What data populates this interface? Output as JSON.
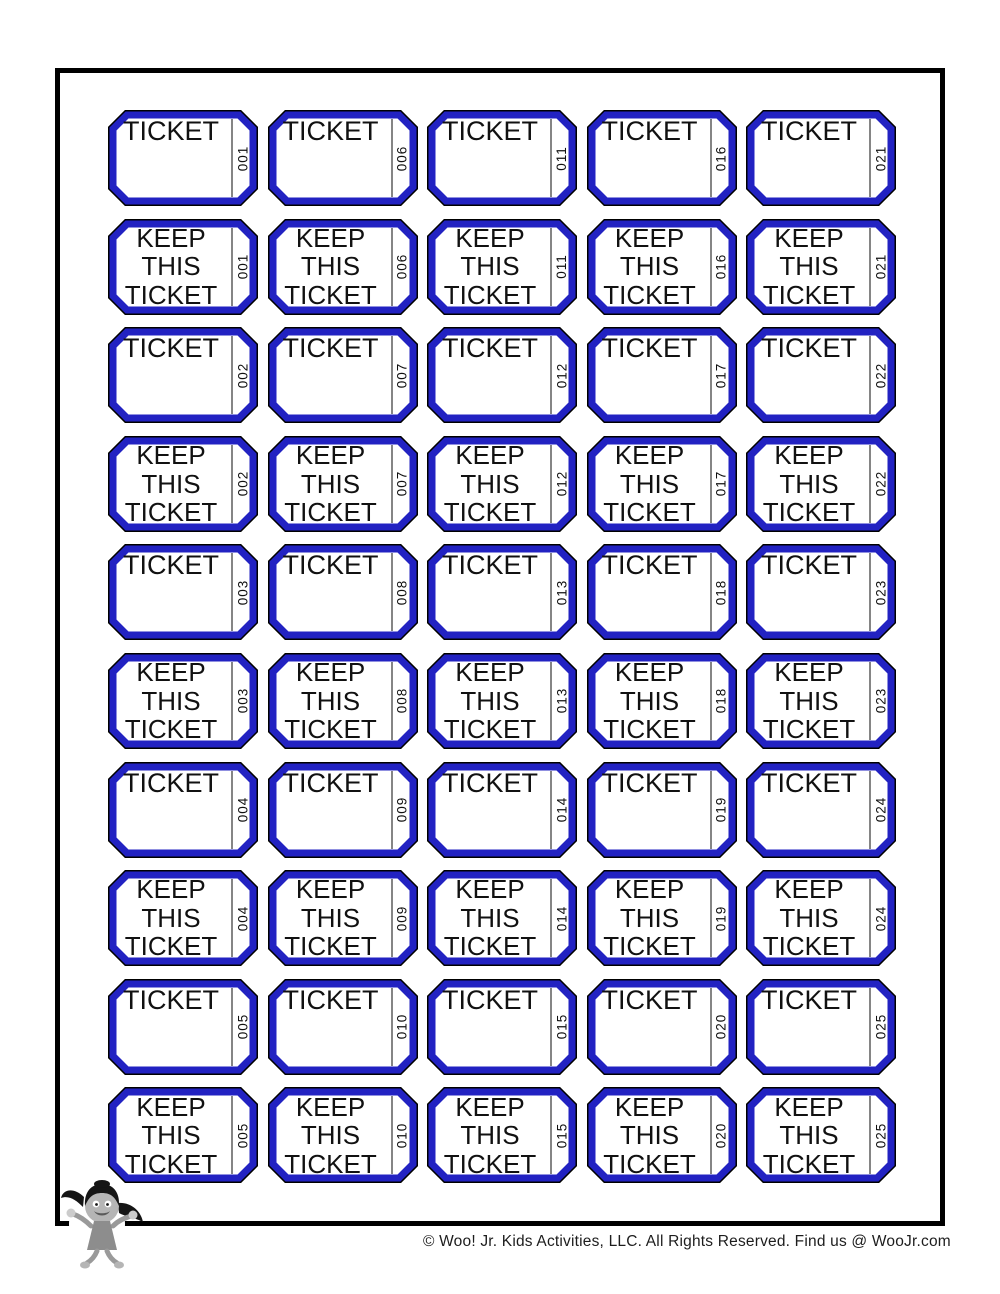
{
  "footer": {
    "text": "© Woo! Jr. Kids Activities, LLC. All Rights Reserved. Find us @ WooJr.com"
  },
  "colors": {
    "ticket_border_blue": "#2222C2",
    "keyline_black": "#000000",
    "perforation_gray": "#333333",
    "text_black": "#111111"
  },
  "mascot": {
    "name": "woo-jr-girl-mascot"
  },
  "tickets": [
    {
      "lines": [
        "TICKET"
      ],
      "number": "001"
    },
    {
      "lines": [
        "TICKET"
      ],
      "number": "006"
    },
    {
      "lines": [
        "TICKET"
      ],
      "number": "011"
    },
    {
      "lines": [
        "TICKET"
      ],
      "number": "016"
    },
    {
      "lines": [
        "TICKET"
      ],
      "number": "021"
    },
    {
      "lines": [
        "KEEP",
        "THIS",
        "TICKET"
      ],
      "number": "001"
    },
    {
      "lines": [
        "KEEP",
        "THIS",
        "TICKET"
      ],
      "number": "006"
    },
    {
      "lines": [
        "KEEP",
        "THIS",
        "TICKET"
      ],
      "number": "011"
    },
    {
      "lines": [
        "KEEP",
        "THIS",
        "TICKET"
      ],
      "number": "016"
    },
    {
      "lines": [
        "KEEP",
        "THIS",
        "TICKET"
      ],
      "number": "021"
    },
    {
      "lines": [
        "TICKET"
      ],
      "number": "002"
    },
    {
      "lines": [
        "TICKET"
      ],
      "number": "007"
    },
    {
      "lines": [
        "TICKET"
      ],
      "number": "012"
    },
    {
      "lines": [
        "TICKET"
      ],
      "number": "017"
    },
    {
      "lines": [
        "TICKET"
      ],
      "number": "022"
    },
    {
      "lines": [
        "KEEP",
        "THIS",
        "TICKET"
      ],
      "number": "002"
    },
    {
      "lines": [
        "KEEP",
        "THIS",
        "TICKET"
      ],
      "number": "007"
    },
    {
      "lines": [
        "KEEP",
        "THIS",
        "TICKET"
      ],
      "number": "012"
    },
    {
      "lines": [
        "KEEP",
        "THIS",
        "TICKET"
      ],
      "number": "017"
    },
    {
      "lines": [
        "KEEP",
        "THIS",
        "TICKET"
      ],
      "number": "022"
    },
    {
      "lines": [
        "TICKET"
      ],
      "number": "003"
    },
    {
      "lines": [
        "TICKET"
      ],
      "number": "008"
    },
    {
      "lines": [
        "TICKET"
      ],
      "number": "013"
    },
    {
      "lines": [
        "TICKET"
      ],
      "number": "018"
    },
    {
      "lines": [
        "TICKET"
      ],
      "number": "023"
    },
    {
      "lines": [
        "KEEP",
        "THIS",
        "TICKET"
      ],
      "number": "003"
    },
    {
      "lines": [
        "KEEP",
        "THIS",
        "TICKET"
      ],
      "number": "008"
    },
    {
      "lines": [
        "KEEP",
        "THIS",
        "TICKET"
      ],
      "number": "013"
    },
    {
      "lines": [
        "KEEP",
        "THIS",
        "TICKET"
      ],
      "number": "018"
    },
    {
      "lines": [
        "KEEP",
        "THIS",
        "TICKET"
      ],
      "number": "023"
    },
    {
      "lines": [
        "TICKET"
      ],
      "number": "004"
    },
    {
      "lines": [
        "TICKET"
      ],
      "number": "009"
    },
    {
      "lines": [
        "TICKET"
      ],
      "number": "014"
    },
    {
      "lines": [
        "TICKET"
      ],
      "number": "019"
    },
    {
      "lines": [
        "TICKET"
      ],
      "number": "024"
    },
    {
      "lines": [
        "KEEP",
        "THIS",
        "TICKET"
      ],
      "number": "004"
    },
    {
      "lines": [
        "KEEP",
        "THIS",
        "TICKET"
      ],
      "number": "009"
    },
    {
      "lines": [
        "KEEP",
        "THIS",
        "TICKET"
      ],
      "number": "014"
    },
    {
      "lines": [
        "KEEP",
        "THIS",
        "TICKET"
      ],
      "number": "019"
    },
    {
      "lines": [
        "KEEP",
        "THIS",
        "TICKET"
      ],
      "number": "024"
    },
    {
      "lines": [
        "TICKET"
      ],
      "number": "005"
    },
    {
      "lines": [
        "TICKET"
      ],
      "number": "010"
    },
    {
      "lines": [
        "TICKET"
      ],
      "number": "015"
    },
    {
      "lines": [
        "TICKET"
      ],
      "number": "020"
    },
    {
      "lines": [
        "TICKET"
      ],
      "number": "025"
    },
    {
      "lines": [
        "KEEP",
        "THIS",
        "TICKET"
      ],
      "number": "005"
    },
    {
      "lines": [
        "KEEP",
        "THIS",
        "TICKET"
      ],
      "number": "010"
    },
    {
      "lines": [
        "KEEP",
        "THIS",
        "TICKET"
      ],
      "number": "015"
    },
    {
      "lines": [
        "KEEP",
        "THIS",
        "TICKET"
      ],
      "number": "020"
    },
    {
      "lines": [
        "KEEP",
        "THIS",
        "TICKET"
      ],
      "number": "025"
    }
  ]
}
